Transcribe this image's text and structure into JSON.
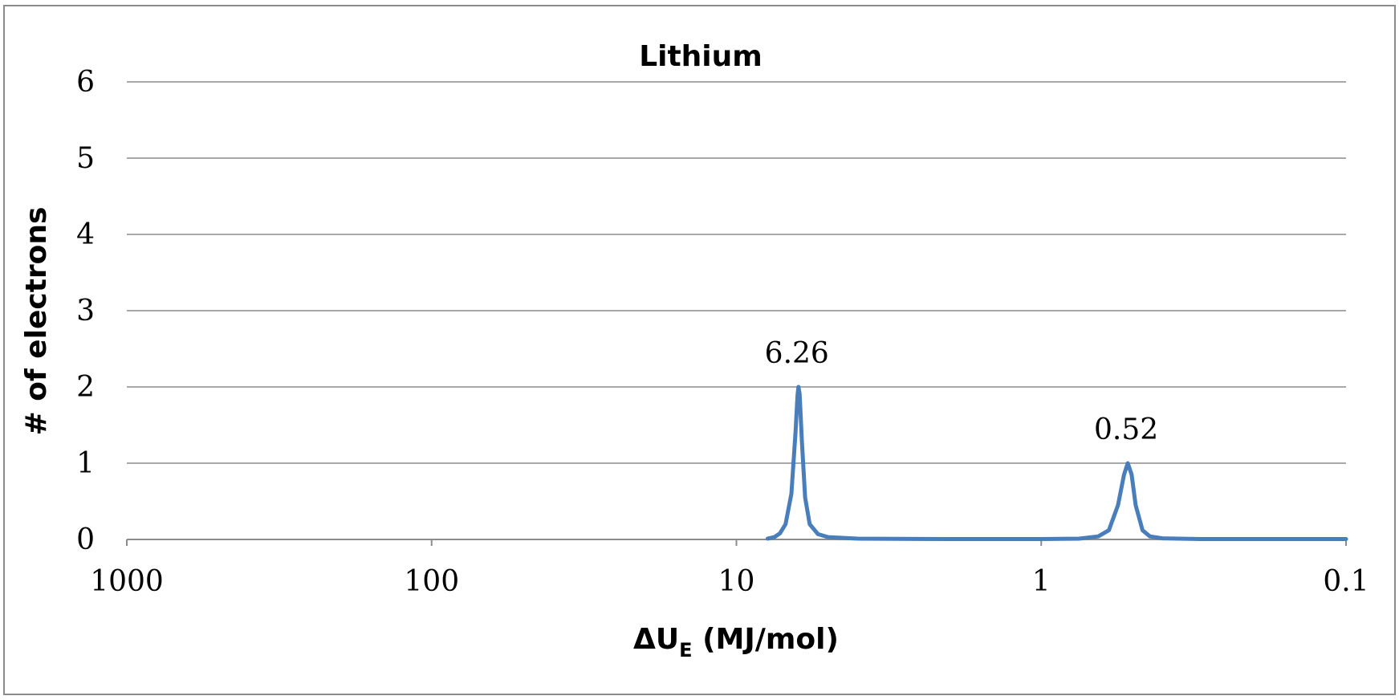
{
  "chart_data": {
    "type": "line",
    "title": "Lithium",
    "xlabel": "ΔU",
    "xlabel_subscript": "E",
    "xlabel_suffix": " (MJ/mol)",
    "ylabel": "# of electrons",
    "x_scale": "log",
    "x_reversed": true,
    "xlim": [
      1000,
      0.1
    ],
    "ylim": [
      0,
      6
    ],
    "x_ticks": [
      1000,
      100,
      10,
      1,
      0.1
    ],
    "x_tick_labels": [
      "1000",
      "100",
      "10",
      "1",
      "0.1"
    ],
    "y_ticks": [
      0,
      1,
      2,
      3,
      4,
      5,
      6
    ],
    "y_tick_labels": [
      "0",
      "1",
      "2",
      "3",
      "4",
      "5",
      "6"
    ],
    "grid": "horizontal",
    "legend": "none",
    "series": [
      {
        "color": "#4a7ebb",
        "points": [
          [
            7.9,
            0.01
          ],
          [
            7.5,
            0.03
          ],
          [
            7.2,
            0.08
          ],
          [
            6.9,
            0.2
          ],
          [
            6.6,
            0.6
          ],
          [
            6.4,
            1.4
          ],
          [
            6.3,
            1.9
          ],
          [
            6.26,
            2.0
          ],
          [
            6.2,
            1.9
          ],
          [
            6.1,
            1.3
          ],
          [
            5.95,
            0.55
          ],
          [
            5.75,
            0.2
          ],
          [
            5.4,
            0.07
          ],
          [
            5.0,
            0.03
          ],
          [
            4.0,
            0.01
          ],
          [
            2.0,
            0.005
          ],
          [
            1.0,
            0.005
          ],
          [
            0.75,
            0.01
          ],
          [
            0.65,
            0.04
          ],
          [
            0.6,
            0.12
          ],
          [
            0.56,
            0.45
          ],
          [
            0.535,
            0.85
          ],
          [
            0.52,
            1.0
          ],
          [
            0.505,
            0.85
          ],
          [
            0.49,
            0.45
          ],
          [
            0.465,
            0.12
          ],
          [
            0.44,
            0.04
          ],
          [
            0.4,
            0.015
          ],
          [
            0.3,
            0.005
          ],
          [
            0.1,
            0.005
          ]
        ]
      }
    ],
    "annotations": [
      {
        "text": "6.26",
        "x": 6.26,
        "y": 2.0
      },
      {
        "text": "0.52",
        "x": 0.52,
        "y": 1.0
      }
    ]
  }
}
